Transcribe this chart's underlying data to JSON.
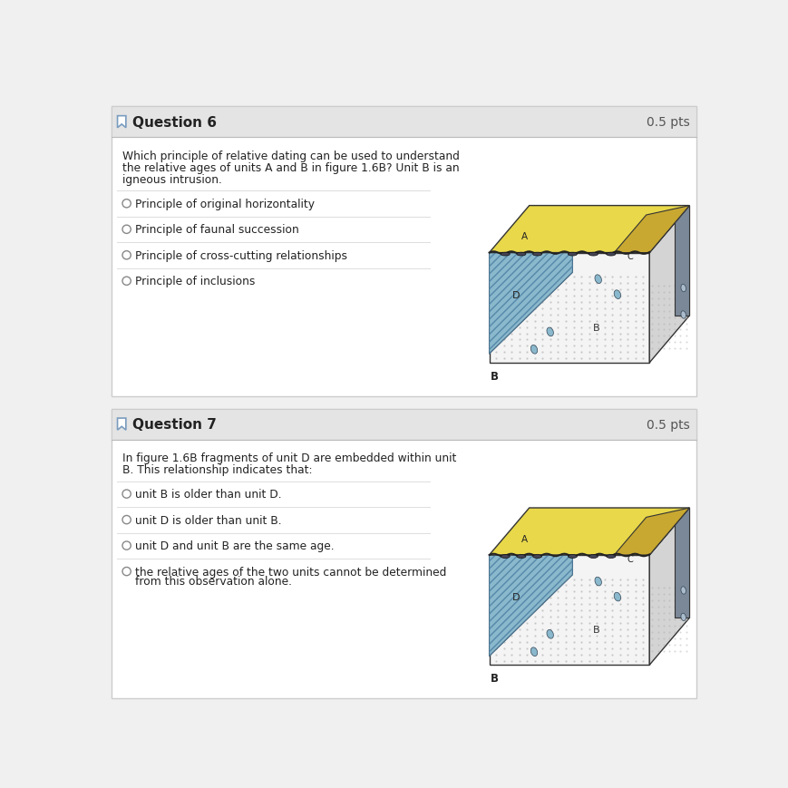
{
  "bg_color": "#f0f0f0",
  "card_bg": "#ffffff",
  "card_border": "#cccccc",
  "header_bg": "#e4e4e4",
  "header_border": "#bbbbbb",
  "text_color": "#222222",
  "pts_color": "#555555",
  "question1_header": "Question 6",
  "question1_pts": "0.5 pts",
  "question1_body": "Which principle of relative dating can be used to understand\nthe relative ages of units A and B in figure 1.6B? Unit B is an\nigneous intrusion.",
  "question1_options": [
    "Principle of original horizontality",
    "Principle of faunal succession",
    "Principle of cross-cutting relationships",
    "Principle of inclusions"
  ],
  "question2_header": "Question 7",
  "question2_pts": "0.5 pts",
  "question2_body": "In figure 1.6B fragments of unit D are embedded within unit\nB. This relationship indicates that:",
  "question2_options": [
    "unit B is older than unit D.",
    "unit D is older than unit B.",
    "unit D and unit B are the same age.",
    "the relative ages of the two units cannot be determined\nfrom this observation alone."
  ],
  "radio_color": "#888888",
  "divider_color": "#dddddd",
  "icon_border_color": "#7a9cbf",
  "yellow_top": "#e8d84a",
  "blue_unit": "#8ab8cc",
  "dark_side": "#7a8898",
  "dot_color": "#aaaaaa",
  "blob_color": "#444455"
}
